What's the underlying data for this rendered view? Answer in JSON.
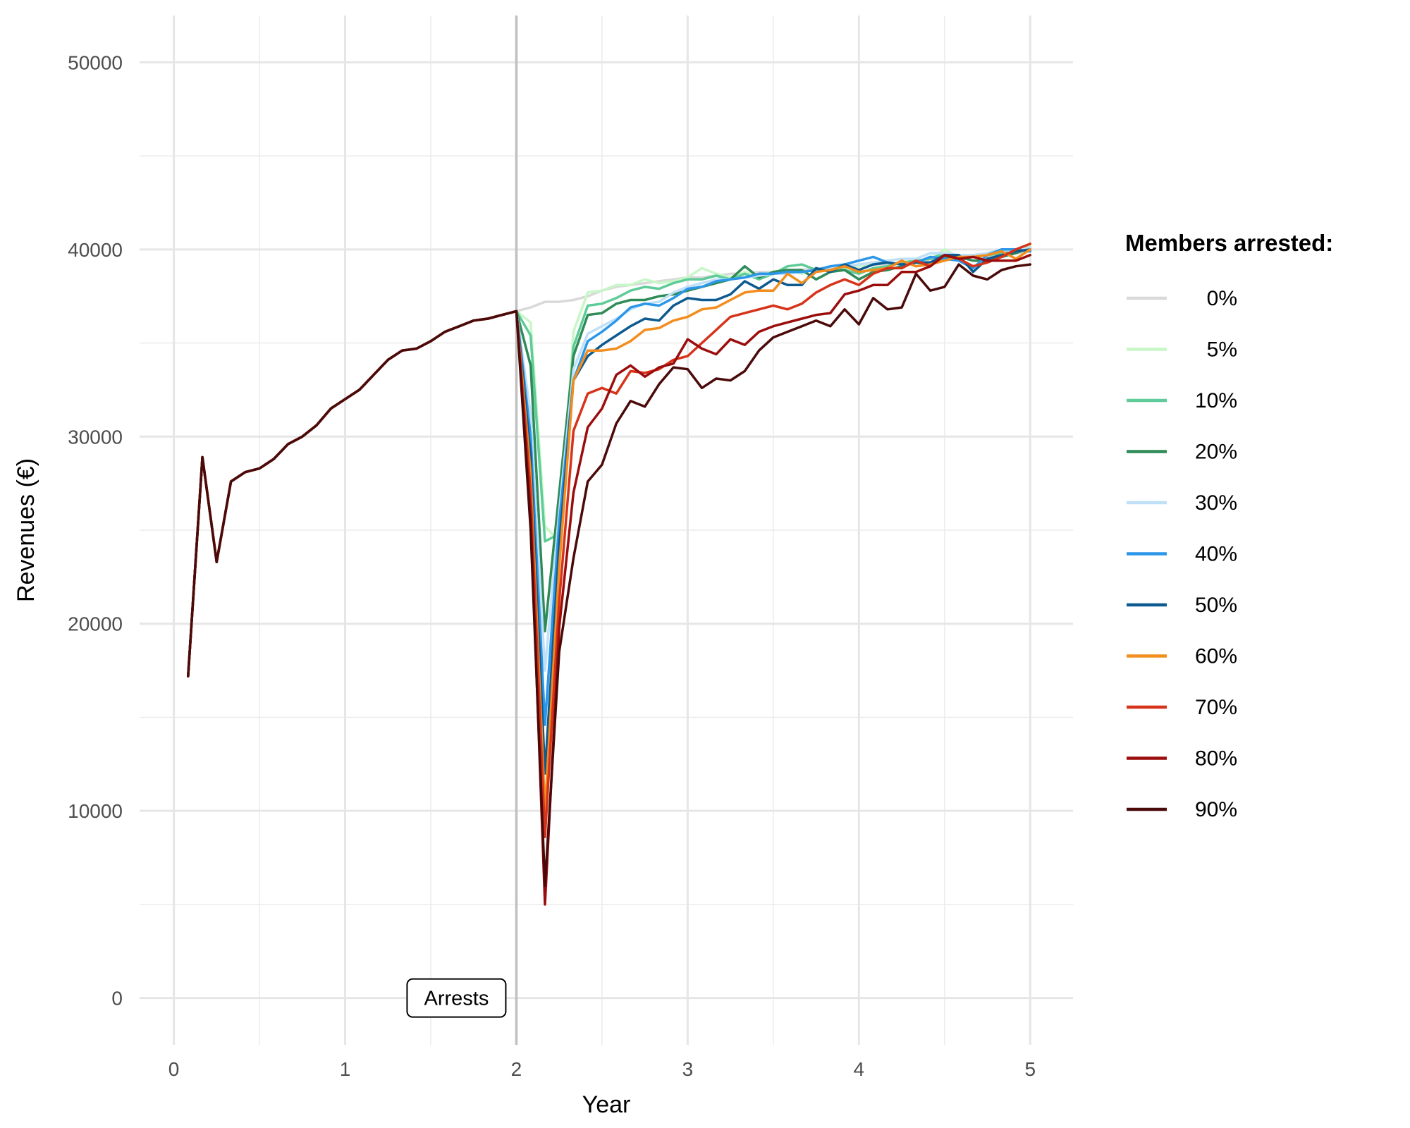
{
  "chart_data": {
    "type": "line",
    "title": "",
    "xlabel": "Year",
    "ylabel": "Revenues (€)",
    "xlim": [
      -0.2,
      5.25
    ],
    "ylim": [
      -2500,
      52500
    ],
    "x_ticks": [
      0,
      1,
      2,
      3,
      4,
      5
    ],
    "x_tick_labels": [
      "0",
      "1",
      "2",
      "3",
      "4",
      "5"
    ],
    "y_ticks": [
      0,
      10000,
      20000,
      30000,
      40000,
      50000
    ],
    "y_tick_labels": [
      "0",
      "10000",
      "20000",
      "30000",
      "40000",
      "50000"
    ],
    "grid": true,
    "legend": {
      "title": "Members arrested:",
      "position": "right"
    },
    "vline": {
      "x": 2,
      "color": "#c0c0c0"
    },
    "annotations": [
      {
        "text": "Arrests",
        "x": 1.65,
        "y": 0
      }
    ],
    "common_x": [
      0.0833,
      0.1667,
      0.25,
      0.3333,
      0.4167,
      0.5,
      0.5833,
      0.6667,
      0.75,
      0.8333,
      0.9167,
      1.0,
      1.0833,
      1.1667,
      1.25,
      1.3333,
      1.4167,
      1.5,
      1.5833,
      1.6667,
      1.75,
      1.8333,
      1.9167,
      2.0
    ],
    "common_y": [
      17200,
      28900,
      23300,
      27600,
      28100,
      28300,
      28800,
      29600,
      30000,
      30600,
      31500,
      32000,
      32500,
      33300,
      34100,
      34600,
      34700,
      35100,
      35600,
      35900,
      36200,
      36300,
      36500,
      36700
    ],
    "post_x": [
      2.0,
      2.0833,
      2.1667,
      2.25,
      2.3333,
      2.4167,
      2.5,
      2.5833,
      2.6667,
      2.75,
      2.8333,
      2.9167,
      3.0,
      3.0833,
      3.1667,
      3.25,
      3.3333,
      3.4167,
      3.5,
      3.5833,
      3.6667,
      3.75,
      3.8333,
      3.9167,
      4.0,
      4.0833,
      4.1667,
      4.25,
      4.3333,
      4.4167,
      4.5,
      4.5833,
      4.6667,
      4.75,
      4.8333,
      4.9167,
      5.0
    ],
    "series": [
      {
        "name": "0%",
        "color": "#d9d9d9",
        "values": [
          36700,
          36900,
          37200,
          37200,
          37300,
          37500,
          37800,
          38000,
          38100,
          38200,
          38300,
          38400,
          38500,
          38500,
          38600,
          38700,
          38700,
          38800,
          38800,
          38900,
          38900,
          39000,
          39000,
          39100,
          39100,
          39200,
          39200,
          39300,
          39300,
          39400,
          39500,
          39500,
          39600,
          39600,
          39700,
          39800,
          39900
        ]
      },
      {
        "name": "5%",
        "color": "#c7f7c7",
        "values": [
          36700,
          36100,
          25200,
          24400,
          35600,
          37700,
          37800,
          38100,
          38100,
          38400,
          38200,
          38300,
          38500,
          39000,
          38700,
          38500,
          38800,
          38600,
          38800,
          38900,
          38700,
          39000,
          38900,
          39000,
          39100,
          39200,
          39300,
          39200,
          39400,
          39500,
          40000,
          39600,
          39700,
          39800,
          40000,
          39900,
          40200
        ]
      },
      {
        "name": "10%",
        "color": "#5ecb98",
        "values": [
          36700,
          35400,
          24400,
          24800,
          34800,
          37000,
          37100,
          37400,
          37800,
          38000,
          37900,
          38200,
          38400,
          38400,
          38600,
          38400,
          38700,
          38400,
          38700,
          39100,
          39200,
          38900,
          39000,
          38900,
          38700,
          39000,
          39100,
          39300,
          39400,
          39500,
          39800,
          39600,
          39600,
          39700,
          39800,
          39900,
          40000
        ]
      },
      {
        "name": "20%",
        "color": "#2e8b57",
        "values": [
          36700,
          33800,
          19600,
          27000,
          34300,
          36500,
          36600,
          37100,
          37300,
          37300,
          37500,
          37600,
          37800,
          38000,
          38200,
          38400,
          39100,
          38500,
          38800,
          38900,
          38900,
          38400,
          38800,
          38900,
          38400,
          38800,
          38900,
          39100,
          39300,
          39200,
          39600,
          39600,
          39400,
          39400,
          39600,
          39800,
          40100
        ]
      },
      {
        "name": "30%",
        "color": "#bfe0f7",
        "values": [
          36700,
          31200,
          17500,
          26000,
          33600,
          35500,
          35900,
          36300,
          36800,
          37100,
          37200,
          37700,
          38000,
          38200,
          38400,
          38400,
          38500,
          38600,
          38700,
          38700,
          38800,
          38900,
          39000,
          39100,
          39200,
          39300,
          39400,
          39500,
          39500,
          39800,
          39800,
          39700,
          39700,
          39800,
          40000,
          39900,
          40100
        ]
      },
      {
        "name": "40%",
        "color": "#2c97e8",
        "values": [
          36700,
          30000,
          14600,
          25400,
          33000,
          35100,
          35600,
          36200,
          36900,
          37100,
          37000,
          37400,
          37900,
          38000,
          38300,
          38400,
          38500,
          38700,
          38700,
          38800,
          38800,
          38900,
          39100,
          39200,
          39400,
          39600,
          39300,
          39200,
          39300,
          39600,
          39500,
          39400,
          39000,
          39700,
          40000,
          40000,
          39900
        ]
      },
      {
        "name": "50%",
        "color": "#0d5a91",
        "values": [
          36700,
          29000,
          12000,
          24200,
          33000,
          34300,
          34900,
          35400,
          35900,
          36300,
          36200,
          37000,
          37400,
          37300,
          37300,
          37600,
          38300,
          37900,
          38400,
          38100,
          38100,
          39000,
          38800,
          39200,
          38900,
          39200,
          39300,
          39200,
          39300,
          39300,
          39700,
          39700,
          38800,
          39500,
          39700,
          39900,
          40000
        ]
      },
      {
        "name": "60%",
        "color": "#f28d1e",
        "values": [
          36700,
          28000,
          10000,
          23000,
          33000,
          34600,
          34600,
          34700,
          35100,
          35700,
          35800,
          36200,
          36400,
          36800,
          36900,
          37300,
          37700,
          37800,
          37800,
          38700,
          38200,
          38800,
          38900,
          39100,
          38800,
          38900,
          39000,
          39400,
          39100,
          39200,
          39400,
          39600,
          39600,
          39700,
          39900,
          39500,
          40000
        ]
      },
      {
        "name": "70%",
        "color": "#d7331a",
        "values": [
          36700,
          27000,
          8600,
          21200,
          30300,
          32300,
          32600,
          32300,
          33500,
          33400,
          33600,
          34100,
          34300,
          35000,
          35700,
          36400,
          36600,
          36800,
          37000,
          36800,
          37100,
          37700,
          38100,
          38400,
          38100,
          38700,
          39000,
          39000,
          39400,
          39100,
          39700,
          39500,
          39100,
          39300,
          39600,
          40000,
          40300
        ]
      },
      {
        "name": "80%",
        "color": "#9b0d0d",
        "values": [
          36700,
          25800,
          5000,
          19800,
          27000,
          30500,
          31500,
          33300,
          33800,
          33200,
          33700,
          33900,
          35200,
          34700,
          34400,
          35200,
          34900,
          35600,
          35900,
          36100,
          36300,
          36500,
          36600,
          37600,
          37800,
          38100,
          38100,
          38800,
          38800,
          39100,
          39700,
          39500,
          39600,
          39400,
          39400,
          39400,
          39700
        ]
      },
      {
        "name": "90%",
        "color": "#4a0a0a",
        "values": [
          36700,
          25000,
          6000,
          18500,
          23500,
          27600,
          28500,
          30700,
          31900,
          31600,
          32800,
          33700,
          33600,
          32600,
          33100,
          33000,
          33500,
          34600,
          35300,
          35600,
          35900,
          36200,
          35900,
          36800,
          36000,
          37400,
          36800,
          36900,
          38700,
          37800,
          38000,
          39200,
          38600,
          38400,
          38900,
          39100,
          39200
        ]
      }
    ]
  }
}
